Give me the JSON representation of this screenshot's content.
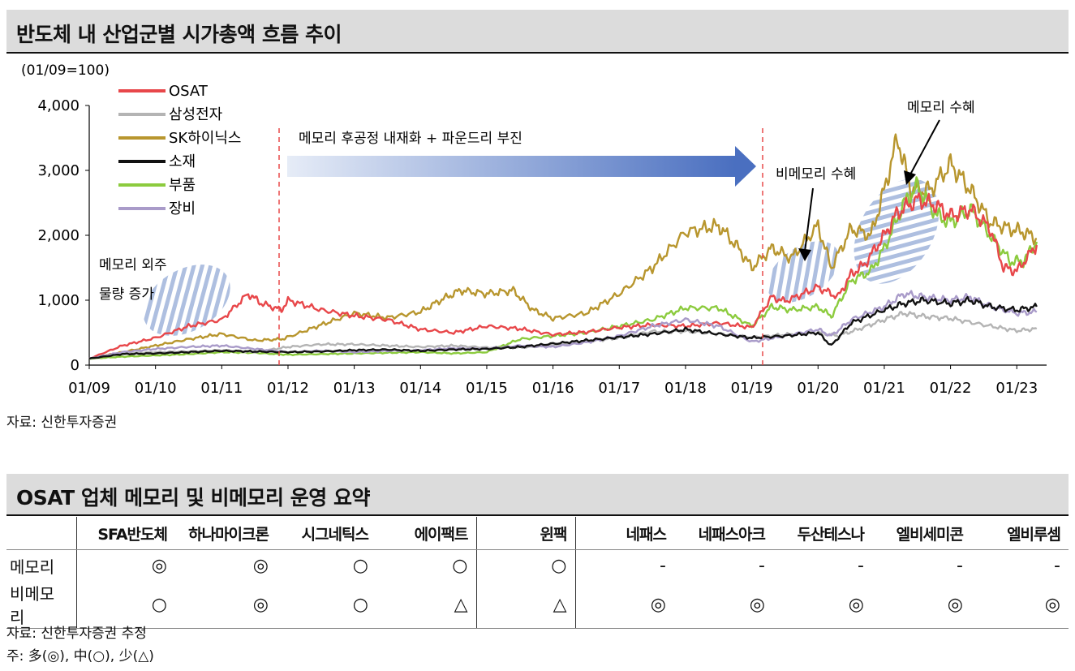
{
  "chart_section": {
    "title": "반도체 내 산업군별 시가총액 흐름 추이",
    "unit_label": "(01/09=100)",
    "source": "자료: 신한투자증권"
  },
  "chart_data": {
    "type": "line",
    "ylim": [
      0,
      4000
    ],
    "y_ticks": [
      "0",
      "1,000",
      "2,000",
      "3,000",
      "4,000"
    ],
    "x_ticks": [
      "01/09",
      "01/10",
      "01/11",
      "01/12",
      "01/13",
      "01/14",
      "01/15",
      "01/16",
      "01/17",
      "01/18",
      "01/19",
      "01/20",
      "01/21",
      "01/22",
      "01/23"
    ],
    "legend_position": "top-left",
    "series": [
      {
        "name": "OSAT",
        "color": "#e8474a",
        "points": [
          [
            2009.0,
            100
          ],
          [
            2009.5,
            300
          ],
          [
            2010.0,
            420
          ],
          [
            2010.5,
            600
          ],
          [
            2011.0,
            700
          ],
          [
            2011.4,
            1100
          ],
          [
            2011.6,
            950
          ],
          [
            2011.9,
            850
          ],
          [
            2012.0,
            1000
          ],
          [
            2012.5,
            850
          ],
          [
            2013.0,
            760
          ],
          [
            2013.5,
            700
          ],
          [
            2014.0,
            550
          ],
          [
            2014.5,
            500
          ],
          [
            2015.0,
            600
          ],
          [
            2015.5,
            560
          ],
          [
            2016.0,
            470
          ],
          [
            2016.5,
            510
          ],
          [
            2017.0,
            580
          ],
          [
            2017.5,
            620
          ],
          [
            2018.0,
            600
          ],
          [
            2018.5,
            650
          ],
          [
            2019.0,
            580
          ],
          [
            2019.3,
            1050
          ],
          [
            2019.5,
            980
          ],
          [
            2020.0,
            1200
          ],
          [
            2020.3,
            1050
          ],
          [
            2020.5,
            1400
          ],
          [
            2020.7,
            1550
          ],
          [
            2021.0,
            2000
          ],
          [
            2021.2,
            2350
          ],
          [
            2021.5,
            2550
          ],
          [
            2021.8,
            2450
          ],
          [
            2022.0,
            2300
          ],
          [
            2022.3,
            2400
          ],
          [
            2022.6,
            2100
          ],
          [
            2022.8,
            1500
          ],
          [
            2023.0,
            1450
          ],
          [
            2023.3,
            1850
          ]
        ]
      },
      {
        "name": "삼성전자",
        "color": "#b4b4b4",
        "points": [
          [
            2009.0,
            100
          ],
          [
            2009.5,
            180
          ],
          [
            2010.0,
            200
          ],
          [
            2010.5,
            210
          ],
          [
            2011.0,
            230
          ],
          [
            2011.5,
            200
          ],
          [
            2012.0,
            280
          ],
          [
            2012.5,
            320
          ],
          [
            2013.0,
            320
          ],
          [
            2013.5,
            300
          ],
          [
            2014.0,
            280
          ],
          [
            2014.5,
            300
          ],
          [
            2015.0,
            270
          ],
          [
            2015.5,
            270
          ],
          [
            2016.0,
            300
          ],
          [
            2016.5,
            360
          ],
          [
            2017.0,
            420
          ],
          [
            2017.5,
            520
          ],
          [
            2018.0,
            520
          ],
          [
            2018.5,
            480
          ],
          [
            2019.0,
            430
          ],
          [
            2019.5,
            470
          ],
          [
            2020.0,
            500
          ],
          [
            2020.3,
            450
          ],
          [
            2020.6,
            550
          ],
          [
            2021.0,
            700
          ],
          [
            2021.3,
            800
          ],
          [
            2021.6,
            750
          ],
          [
            2022.0,
            720
          ],
          [
            2022.5,
            620
          ],
          [
            2023.0,
            530
          ],
          [
            2023.3,
            560
          ]
        ]
      },
      {
        "name": "SK하이닉스",
        "color": "#b8962e",
        "points": [
          [
            2009.0,
            100
          ],
          [
            2009.5,
            200
          ],
          [
            2010.0,
            300
          ],
          [
            2010.5,
            400
          ],
          [
            2011.0,
            480
          ],
          [
            2011.5,
            380
          ],
          [
            2011.9,
            400
          ],
          [
            2012.0,
            430
          ],
          [
            2012.5,
            620
          ],
          [
            2013.0,
            800
          ],
          [
            2013.5,
            730
          ],
          [
            2014.0,
            820
          ],
          [
            2014.3,
            1000
          ],
          [
            2014.6,
            1150
          ],
          [
            2015.0,
            1100
          ],
          [
            2015.4,
            1150
          ],
          [
            2015.7,
            850
          ],
          [
            2016.0,
            720
          ],
          [
            2016.5,
            800
          ],
          [
            2017.0,
            1100
          ],
          [
            2017.5,
            1500
          ],
          [
            2018.0,
            2050
          ],
          [
            2018.5,
            2150
          ],
          [
            2018.8,
            1800
          ],
          [
            2019.0,
            1500
          ],
          [
            2019.3,
            1800
          ],
          [
            2019.6,
            1650
          ],
          [
            2020.0,
            2150
          ],
          [
            2020.2,
            1500
          ],
          [
            2020.5,
            2100
          ],
          [
            2020.8,
            2000
          ],
          [
            2021.0,
            2700
          ],
          [
            2021.2,
            3500
          ],
          [
            2021.4,
            2700
          ],
          [
            2021.7,
            2700
          ],
          [
            2022.0,
            3100
          ],
          [
            2022.3,
            2700
          ],
          [
            2022.6,
            2200
          ],
          [
            2022.9,
            2100
          ],
          [
            2023.1,
            2050
          ],
          [
            2023.3,
            1950
          ]
        ]
      },
      {
        "name": "소재",
        "color": "#111111",
        "points": [
          [
            2009.0,
            100
          ],
          [
            2009.5,
            170
          ],
          [
            2010.0,
            180
          ],
          [
            2010.5,
            200
          ],
          [
            2011.0,
            220
          ],
          [
            2011.5,
            210
          ],
          [
            2012.0,
            200
          ],
          [
            2012.5,
            210
          ],
          [
            2013.0,
            230
          ],
          [
            2013.5,
            240
          ],
          [
            2014.0,
            220
          ],
          [
            2014.5,
            240
          ],
          [
            2015.0,
            250
          ],
          [
            2015.5,
            280
          ],
          [
            2016.0,
            330
          ],
          [
            2016.5,
            380
          ],
          [
            2017.0,
            430
          ],
          [
            2017.5,
            480
          ],
          [
            2018.0,
            550
          ],
          [
            2018.5,
            480
          ],
          [
            2019.0,
            420
          ],
          [
            2019.5,
            450
          ],
          [
            2020.0,
            500
          ],
          [
            2020.2,
            300
          ],
          [
            2020.5,
            650
          ],
          [
            2021.0,
            850
          ],
          [
            2021.3,
            950
          ],
          [
            2021.6,
            1000
          ],
          [
            2022.0,
            950
          ],
          [
            2022.3,
            1000
          ],
          [
            2022.6,
            900
          ],
          [
            2023.0,
            850
          ],
          [
            2023.3,
            900
          ]
        ]
      },
      {
        "name": "부품",
        "color": "#8ccb3e",
        "points": [
          [
            2009.0,
            100
          ],
          [
            2009.5,
            130
          ],
          [
            2010.0,
            150
          ],
          [
            2010.5,
            170
          ],
          [
            2011.0,
            200
          ],
          [
            2011.5,
            190
          ],
          [
            2012.0,
            160
          ],
          [
            2012.5,
            170
          ],
          [
            2013.0,
            180
          ],
          [
            2013.5,
            190
          ],
          [
            2014.0,
            200
          ],
          [
            2014.5,
            180
          ],
          [
            2015.0,
            200
          ],
          [
            2015.5,
            400
          ],
          [
            2016.0,
            450
          ],
          [
            2016.5,
            500
          ],
          [
            2017.0,
            600
          ],
          [
            2017.5,
            700
          ],
          [
            2018.0,
            880
          ],
          [
            2018.5,
            880
          ],
          [
            2019.0,
            600
          ],
          [
            2019.3,
            900
          ],
          [
            2019.6,
            850
          ],
          [
            2020.0,
            900
          ],
          [
            2020.2,
            750
          ],
          [
            2020.5,
            1300
          ],
          [
            2020.8,
            1450
          ],
          [
            2021.0,
            1800
          ],
          [
            2021.3,
            2500
          ],
          [
            2021.5,
            2750
          ],
          [
            2021.8,
            2300
          ],
          [
            2022.0,
            2200
          ],
          [
            2022.3,
            2400
          ],
          [
            2022.6,
            2000
          ],
          [
            2022.9,
            1600
          ],
          [
            2023.1,
            1600
          ],
          [
            2023.3,
            1900
          ]
        ]
      },
      {
        "name": "장비",
        "color": "#a99bc9",
        "points": [
          [
            2009.0,
            100
          ],
          [
            2009.5,
            200
          ],
          [
            2010.0,
            250
          ],
          [
            2010.5,
            280
          ],
          [
            2011.0,
            300
          ],
          [
            2011.5,
            250
          ],
          [
            2012.0,
            200
          ],
          [
            2012.5,
            220
          ],
          [
            2013.0,
            200
          ],
          [
            2013.5,
            220
          ],
          [
            2014.0,
            230
          ],
          [
            2014.5,
            260
          ],
          [
            2015.0,
            250
          ],
          [
            2015.5,
            300
          ],
          [
            2016.0,
            280
          ],
          [
            2016.5,
            350
          ],
          [
            2017.0,
            450
          ],
          [
            2017.5,
            600
          ],
          [
            2018.0,
            700
          ],
          [
            2018.5,
            600
          ],
          [
            2019.0,
            360
          ],
          [
            2019.5,
            450
          ],
          [
            2020.0,
            550
          ],
          [
            2020.2,
            450
          ],
          [
            2020.5,
            700
          ],
          [
            2021.0,
            900
          ],
          [
            2021.3,
            1100
          ],
          [
            2021.6,
            1050
          ],
          [
            2022.0,
            1000
          ],
          [
            2022.3,
            1050
          ],
          [
            2022.6,
            900
          ],
          [
            2023.0,
            800
          ],
          [
            2023.3,
            820
          ]
        ]
      }
    ],
    "annotations": {
      "outsourcing": "메모리 외주",
      "outsourcing_2": "물량 증가",
      "period_arrow": "메모리 후공정 내재화 + 파운드리 부진",
      "non_memory": "비메모리 수혜",
      "memory": "메모리 수혜"
    }
  },
  "table_section": {
    "title": "OSAT 업체 메모리 및 비메모리 운영 요약",
    "columns": [
      "SFA반도체",
      "하나마이크론",
      "시그네틱스",
      "에이팩트",
      "윈팩",
      "네패스",
      "네패스아크",
      "두산테스나",
      "엘비세미콘",
      "엘비루셈"
    ],
    "rows": [
      {
        "label": "메모리",
        "values": [
          "◎",
          "◎",
          "○",
          "○",
          "○",
          "-",
          "-",
          "-",
          "-",
          "-"
        ]
      },
      {
        "label": "비메모리",
        "values": [
          "○",
          "◎",
          "○",
          "△",
          "△",
          "◎",
          "◎",
          "◎",
          "◎",
          "◎"
        ]
      }
    ],
    "source": "자료: 신한투자증권 추정",
    "note": "주: 多(◎), 中(○), 少(△)"
  }
}
